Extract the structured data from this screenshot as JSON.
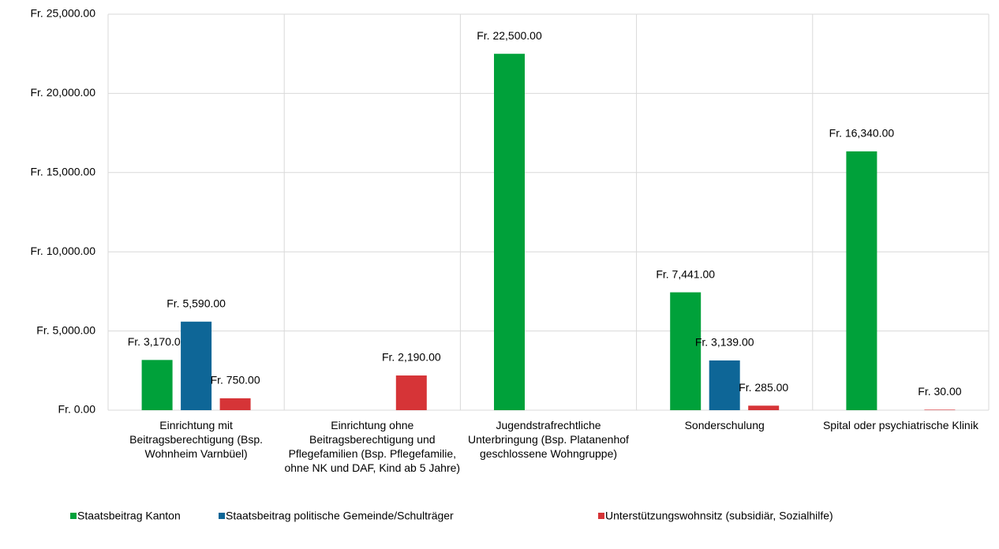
{
  "chart_data": {
    "type": "bar",
    "categories": [
      "Einrichtung mit Beitragsberechtigung (Bsp. Wohnheim Varnbüel)",
      "Einrichtung ohne Beitragsberechtigung und Pflegefamilien (Bsp. Pflegefamilie, ohne NK und DAF, Kind ab 5 Jahre)",
      "Jugendstrafrechtliche Unterbringung (Bsp. Platanenhof geschlossene Wohngruppe)",
      "Sonderschulung",
      "Spital oder psychiatrische Klinik"
    ],
    "series": [
      {
        "name": "Staatsbeitrag Kanton",
        "color": "#00a13a",
        "values": [
          3170,
          null,
          22500,
          7441,
          16340
        ],
        "value_labels": [
          "Fr. 3,170.00",
          null,
          "Fr. 22,500.00",
          "Fr. 7,441.00",
          "Fr. 16,340.00"
        ]
      },
      {
        "name": "Staatsbeitrag politische Gemeinde/Schulträger",
        "color": "#0e6697",
        "values": [
          5590,
          null,
          null,
          3139,
          null
        ],
        "value_labels": [
          "Fr. 5,590.00",
          null,
          null,
          "Fr. 3,139.00",
          null
        ]
      },
      {
        "name": "Unterstützungswohnsitz (subsidiär, Sozialhilfe)",
        "color": "#d63437",
        "values": [
          750,
          2190,
          null,
          285,
          30
        ],
        "value_labels": [
          "Fr. 750.00",
          "Fr. 2,190.00",
          null,
          "Fr. 285.00",
          "Fr. 30.00"
        ]
      }
    ],
    "ylim": [
      0,
      25000
    ],
    "yticks": [
      {
        "value": 0,
        "label": "Fr. 0.00"
      },
      {
        "value": 5000,
        "label": "Fr. 5,000.00"
      },
      {
        "value": 10000,
        "label": "Fr. 10,000.00"
      },
      {
        "value": 15000,
        "label": "Fr. 15,000.00"
      },
      {
        "value": 20000,
        "label": "Fr. 20,000.00"
      },
      {
        "value": 25000,
        "label": "Fr. 25,000.00"
      }
    ],
    "grid": true,
    "legend": "bottom"
  }
}
